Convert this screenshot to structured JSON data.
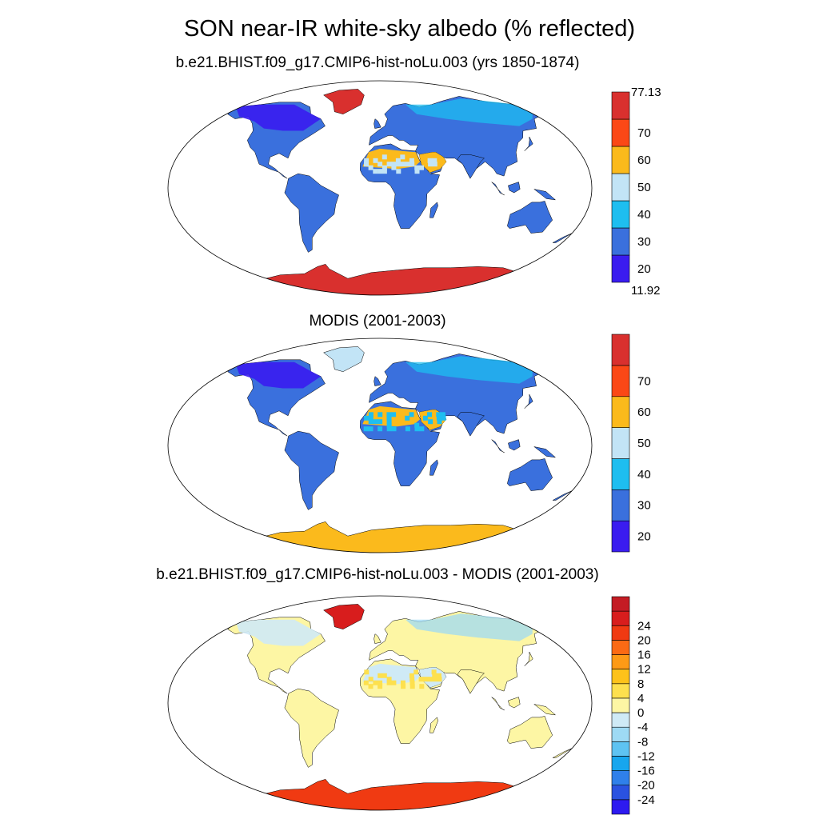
{
  "figure": {
    "title": "SON near-IR white-sky albedo (% reflected)"
  },
  "panels": [
    {
      "title": "b.e21.BHIST.f09_g17.CMIP6-hist-noLu.003 (yrs 1850-1874)",
      "colorbar": {
        "colors": [
          "#3a1cf0",
          "#3a70dd",
          "#1ebef0",
          "#c2e4f6",
          "#fbba1c",
          "#fb4816",
          "#d9302e"
        ],
        "labels": [
          "20",
          "30",
          "40",
          "50",
          "60",
          "70"
        ],
        "min_label": "11.92",
        "max_label": "77.13"
      },
      "map": {
        "land": "#3a70dd",
        "ocean": "#ffffff",
        "desert": "#fbba1c",
        "desert_mix": "#c2e4f6",
        "boreal": "#3a1cf0",
        "greenland": "#d9302e",
        "antarctica": "#d9302e",
        "arctic": "#1ebef0"
      }
    },
    {
      "title": "MODIS (2001-2003)",
      "colorbar": {
        "colors": [
          "#3a1cf0",
          "#3a70dd",
          "#1ebef0",
          "#c2e4f6",
          "#fbba1c",
          "#fb4816",
          "#d9302e"
        ],
        "labels": [
          "20",
          "30",
          "40",
          "50",
          "60",
          "70"
        ]
      },
      "map": {
        "land": "#3a70dd",
        "ocean": "#ffffff",
        "desert": "#fbba1c",
        "desert_mix": "#1ebef0",
        "boreal": "#3a1cf0",
        "greenland": "#c2e4f6",
        "antarctica": "#fbba1c",
        "arctic": "#1ebef0"
      }
    },
    {
      "title": "b.e21.BHIST.f09_g17.CMIP6-hist-noLu.003 - MODIS (2001-2003)",
      "colorbar": {
        "colors": [
          "#2d1af0",
          "#2a52e0",
          "#2f80ea",
          "#17a6ee",
          "#5ec3f2",
          "#9edaf4",
          "#cfeaf6",
          "#fdf6a4",
          "#fde04e",
          "#fdc21a",
          "#fd9a16",
          "#fb6a14",
          "#f03a12",
          "#d81d1d",
          "#c41c24"
        ],
        "labels": [
          "-24",
          "-20",
          "-16",
          "-12",
          "-8",
          "-4",
          "0",
          "4",
          "8",
          "12",
          "16",
          "20",
          "24"
        ]
      },
      "map": {
        "land": "#fdf6a4",
        "ocean": "#ffffff",
        "desert": "#cfeaf6",
        "desert_mix": "#fde04e",
        "boreal": "#cfeaf6",
        "greenland": "#d81d1d",
        "antarctica": "#f03a12",
        "arctic": "#9edaf4"
      }
    }
  ]
}
